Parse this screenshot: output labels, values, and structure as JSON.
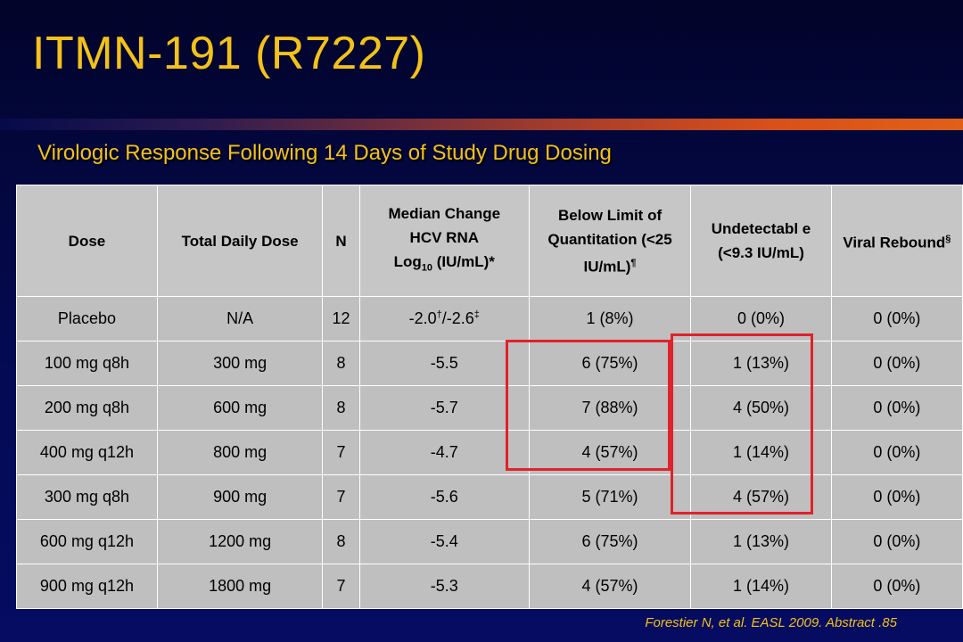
{
  "title": "ITMN-191 (R7227)",
  "subtitle": "Virologic Response Following 14 Days of Study Drug Dosing",
  "colors": {
    "title": "#f3c21a",
    "background": "#040a52",
    "table": "#bfbfbf",
    "highlight": "#e0222a"
  },
  "table": {
    "headers": {
      "dose": "Dose",
      "total_daily_dose": "Total Daily Dose",
      "n": "N",
      "median_line1": "Median Change",
      "median_line2": "HCV RNA",
      "median_log": "Log",
      "median_sub": "10",
      "median_tail": " (IU/mL)*",
      "blq_main": "Below Limit of Quantitation (<25 IU/mL)",
      "blq_sup": "¶",
      "undetectable": "Undetectabl e (<9.3 IU/mL)",
      "viral_rebound": "Viral Rebound",
      "viral_rebound_sup": "§"
    },
    "placebo": {
      "dose": "Placebo",
      "total": "N/A",
      "n": "12",
      "median_a": "-2.0",
      "median_a_sup": "†",
      "median_sep": "/-2.6",
      "median_b_sup": "‡",
      "blq": "1 (8%)",
      "undetectable": "0 (0%)",
      "rebound": "0 (0%)"
    },
    "rows": [
      {
        "dose": "100 mg q8h",
        "total": "300 mg",
        "n": "8",
        "median": "-5.5",
        "blq": "6 (75%)",
        "undetectable": "1 (13%)",
        "rebound": "0 (0%)"
      },
      {
        "dose": "200 mg q8h",
        "total": "600 mg",
        "n": "8",
        "median": "-5.7",
        "blq": "7 (88%)",
        "undetectable": "4 (50%)",
        "rebound": "0 (0%)"
      },
      {
        "dose": "400 mg q12h",
        "total": "800 mg",
        "n": "7",
        "median": "-4.7",
        "blq": "4 (57%)",
        "undetectable": "1 (14%)",
        "rebound": "0 (0%)"
      },
      {
        "dose": "300 mg q8h",
        "total": "900 mg",
        "n": "7",
        "median": "-5.6",
        "blq": "5 (71%)",
        "undetectable": "4 (57%)",
        "rebound": "0 (0%)"
      },
      {
        "dose": "600 mg q12h",
        "total": "1200 mg",
        "n": "8",
        "median": "-5.4",
        "blq": "6 (75%)",
        "undetectable": "1 (13%)",
        "rebound": "0 (0%)"
      },
      {
        "dose": "900 mg q12h",
        "total": "1800 mg",
        "n": "7",
        "median": "-5.3",
        "blq": "4 (57%)",
        "undetectable": "1 (14%)",
        "rebound": "0 (0%)"
      }
    ]
  },
  "citation": "Forestier N, et al. EASL 2009. Abstract .85"
}
